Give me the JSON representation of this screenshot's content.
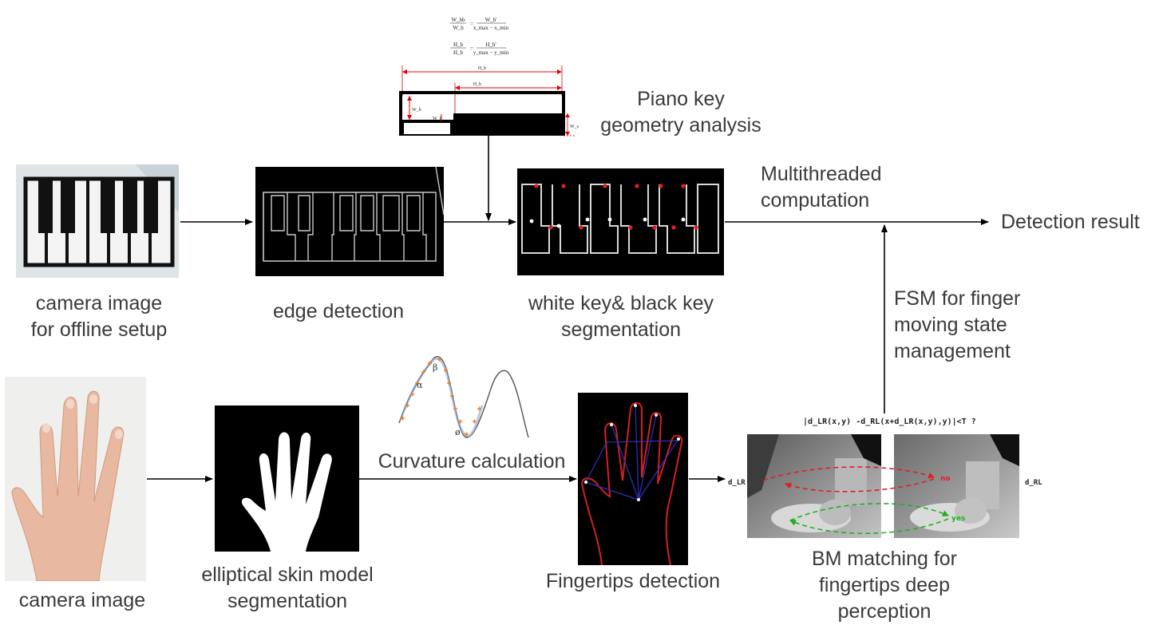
{
  "top": {
    "camera_label": [
      "camera image",
      "for offline setup"
    ],
    "edge_label": [
      "edge detection"
    ],
    "segmentation_label": [
      "white key& black key",
      "segmentation"
    ],
    "piano_label": [
      "Piano key",
      "geometry analysis"
    ],
    "multithread_label": [
      "Multithreaded",
      "computation"
    ],
    "result_label": "Detection result"
  },
  "formula": {
    "line1_lhs_num": "W_bb",
    "line1_lhs_den": "W_b",
    "line1_rhs_num": "W_b'",
    "line1_rhs_den": "x_max − x_min",
    "line2_lhs_num": "H_b",
    "line2_lhs_den": "H_b",
    "line2_rhs_num": "H_b'",
    "line2_rhs_den": "y_max − y_min",
    "dim_outer": "H_b",
    "dim_inner": "H_b",
    "dim_w": "W_b",
    "dim_wb": "W_b",
    "dim_ws": "W_s"
  },
  "bottom": {
    "camera_label": [
      "camera image"
    ],
    "skin_label": [
      "elliptical skin model",
      "segmentation"
    ],
    "curvature_label": "Curvature calculation",
    "fingertips_label": [
      "Fingertips detection"
    ],
    "bm_label": [
      "BM matching for",
      "fingertips  deep",
      "perception"
    ],
    "fsm_label": [
      "FSM for finger",
      "moving state",
      "management"
    ],
    "greek": {
      "alpha": "α",
      "beta": "β",
      "phi": "ø"
    },
    "stereo_formula": "|d_LR(x,y)  -d_RL(x+d_LR(x,y),y)|<T ?",
    "d_lr": "d_LR",
    "d_rl": "d_RL",
    "no_label": "no",
    "yes_label": "yes"
  },
  "colors": {
    "arrow": "#000000",
    "edge": "#c8c8c8",
    "red_marker": "#e02020",
    "hand_contour": "#d42020",
    "hand_lines": "#3030c0",
    "curve_marker": "#f08020",
    "dim_red": "#e00000"
  }
}
